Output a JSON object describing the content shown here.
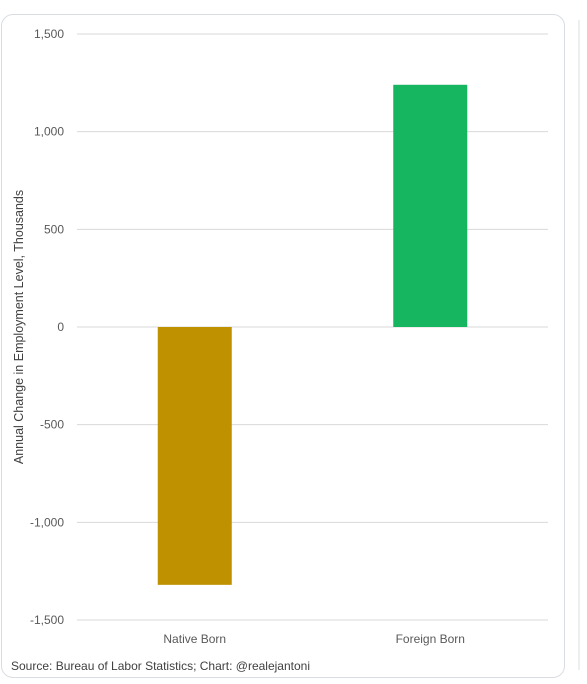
{
  "chart_data": {
    "type": "bar",
    "title": "",
    "xlabel": "",
    "ylabel": "Annual Change in Employment Level, Thousands",
    "categories": [
      "Native Born",
      "Foreign Born"
    ],
    "values": [
      -1320,
      1240
    ],
    "colors": [
      "#bf9000",
      "#16b660"
    ],
    "ylim": [
      -1500,
      1500
    ],
    "yticks": [
      1500,
      1000,
      500,
      0,
      -500,
      -1000,
      -1500
    ],
    "ytick_labels": [
      "1,500",
      "1,000",
      "500",
      "0",
      "-500",
      "-1,000",
      "-1,500"
    ],
    "grid": true,
    "legend": "none",
    "source": "Source: Bureau of Labor Statistics; Chart: @realejantoni"
  }
}
